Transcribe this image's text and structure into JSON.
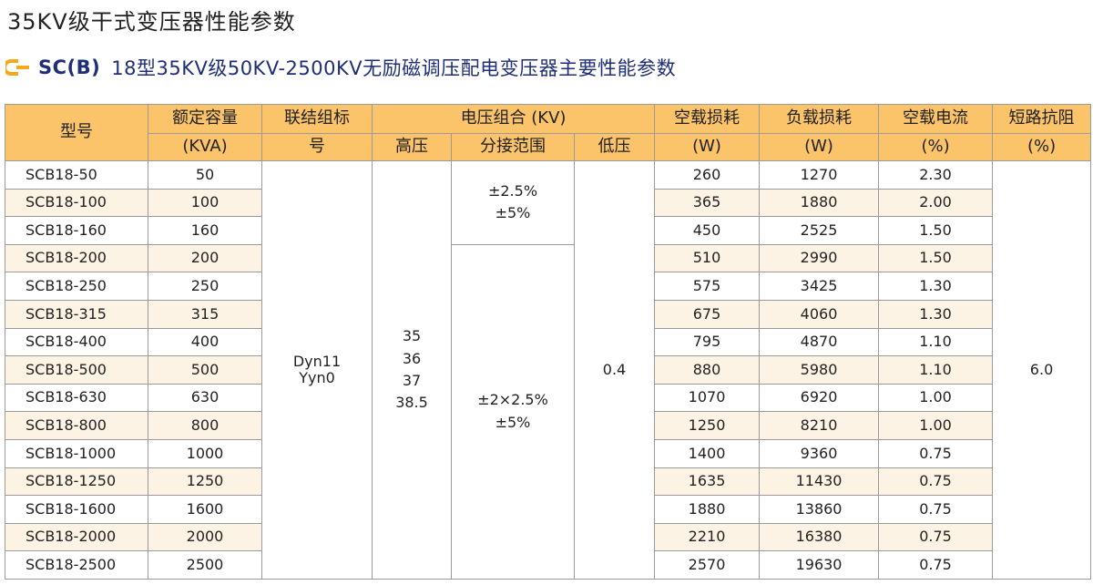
{
  "page": {
    "title": "35KV级干式变压器性能参数",
    "subtitle_code": "SC(B)",
    "subtitle_text": "18型35KV级50KV-2500KV无励磁调压配电变压器主要性能参数",
    "accent_color": "#f4a81d",
    "header_color": "#fbc36a",
    "subtitle_color": "#1e2e78",
    "icon": "bracket-icon"
  },
  "headers": {
    "model": "型号",
    "capacity": "额定容量",
    "capacity_unit": "(KVA)",
    "connection_1": "联结组标",
    "connection_2": "号",
    "voltage_group": "电压组合 (KV)",
    "hv": "高压",
    "tap_range": "分接范围",
    "lv": "低压",
    "noload_loss": "空载损耗",
    "noload_loss_unit": "(W)",
    "load_loss": "负载损耗",
    "load_loss_unit": "(W)",
    "noload_current": "空载电流",
    "noload_current_unit": "(%)",
    "impedance": "短路抗阻",
    "impedance_unit": "(%)"
  },
  "merged": {
    "connection_1": "Dyn11",
    "connection_2": "Yyn0",
    "hv": [
      "35",
      "36",
      "37",
      "38.5"
    ],
    "tap_small_1": "±2.5%",
    "tap_small_2": "±5%",
    "tap_large_1": "±2×2.5%",
    "tap_large_2": "±5%",
    "lv": "0.4",
    "impedance": "6.0"
  },
  "rows": [
    {
      "model": "SCB18-50",
      "capacity": "50",
      "noload_loss": "260",
      "load_loss": "1270",
      "noload_current": "2.30"
    },
    {
      "model": "SCB18-100",
      "capacity": "100",
      "noload_loss": "365",
      "load_loss": "1880",
      "noload_current": "2.00"
    },
    {
      "model": "SCB18-160",
      "capacity": "160",
      "noload_loss": "450",
      "load_loss": "2525",
      "noload_current": "1.50"
    },
    {
      "model": "SCB18-200",
      "capacity": "200",
      "noload_loss": "510",
      "load_loss": "2990",
      "noload_current": "1.50"
    },
    {
      "model": "SCB18-250",
      "capacity": "250",
      "noload_loss": "575",
      "load_loss": "3425",
      "noload_current": "1.30"
    },
    {
      "model": "SCB18-315",
      "capacity": "315",
      "noload_loss": "675",
      "load_loss": "4060",
      "noload_current": "1.30"
    },
    {
      "model": "SCB18-400",
      "capacity": "400",
      "noload_loss": "795",
      "load_loss": "4870",
      "noload_current": "1.10"
    },
    {
      "model": "SCB18-500",
      "capacity": "500",
      "noload_loss": "880",
      "load_loss": "5980",
      "noload_current": "1.10"
    },
    {
      "model": "SCB18-630",
      "capacity": "630",
      "noload_loss": "1070",
      "load_loss": "6920",
      "noload_current": "1.00"
    },
    {
      "model": "SCB18-800",
      "capacity": "800",
      "noload_loss": "1250",
      "load_loss": "8210",
      "noload_current": "1.00"
    },
    {
      "model": "SCB18-1000",
      "capacity": "1000",
      "noload_loss": "1400",
      "load_loss": "9360",
      "noload_current": "0.75"
    },
    {
      "model": "SCB18-1250",
      "capacity": "1250",
      "noload_loss": "1635",
      "load_loss": "11430",
      "noload_current": "0.75"
    },
    {
      "model": "SCB18-1600",
      "capacity": "1600",
      "noload_loss": "1880",
      "load_loss": "13860",
      "noload_current": "0.75"
    },
    {
      "model": "SCB18-2000",
      "capacity": "2000",
      "noload_loss": "2210",
      "load_loss": "16380",
      "noload_current": "0.75"
    },
    {
      "model": "SCB18-2500",
      "capacity": "2500",
      "noload_loss": "2570",
      "load_loss": "19630",
      "noload_current": "0.75"
    }
  ]
}
